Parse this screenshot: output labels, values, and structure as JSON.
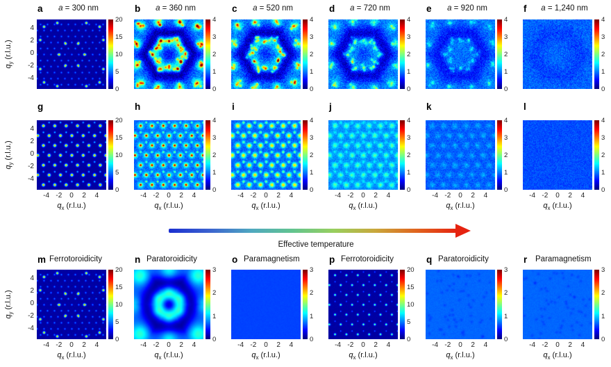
{
  "figure": {
    "arrow": {
      "label": "Effective temperature",
      "gradient": [
        "#1b2fd0",
        "#3b63cf",
        "#4fa8c0",
        "#62c48f",
        "#98cf5e",
        "#c9a83c",
        "#e0641e",
        "#e62310"
      ]
    },
    "axis": {
      "x_main": "q",
      "x_sub": "x",
      "x_unit": " (r.l.u.)",
      "y_main": "q",
      "y_sub": "y",
      "y_unit": " (r.l.u.)"
    },
    "colors": {
      "background": "#ffffff",
      "text": "#111111",
      "dark_blue": "#000080",
      "arrow_red": "#e62310"
    }
  },
  "chart_data": {
    "type": "heatmap",
    "colormap": "jet",
    "q_range": [
      -5.5,
      5.5
    ],
    "x_ticks": [
      "-4",
      "-2",
      "0",
      "2",
      "4"
    ],
    "y_ticks": [
      "4",
      "2",
      "0",
      "-2",
      "-4"
    ],
    "x_tick_q": [
      -4,
      -2,
      0,
      2,
      4
    ],
    "y_tick_q": [
      4,
      2,
      0,
      -2,
      -4
    ],
    "cluster_sites": [
      [
        1.86,
        1.08
      ],
      [
        0,
        2.15
      ],
      [
        -1.86,
        1.08
      ],
      [
        -1.86,
        -1.08
      ],
      [
        0,
        -2.15
      ],
      [
        1.86,
        -1.08
      ],
      [
        2.6,
        0
      ],
      [
        1.3,
        2.25
      ],
      [
        -1.3,
        2.25
      ],
      [
        -2.6,
        0
      ],
      [
        -1.3,
        -2.25
      ],
      [
        1.3,
        -2.25
      ],
      [
        4.5,
        4.5
      ],
      [
        -4.5,
        4.5
      ],
      [
        -4.5,
        -4.5
      ],
      [
        4.5,
        -4.5
      ],
      [
        1.7,
        5.1
      ],
      [
        -1.7,
        5.1
      ],
      [
        1.7,
        -5.1
      ],
      [
        -1.7,
        -5.1
      ],
      [
        5.1,
        1.7
      ],
      [
        5.1,
        -1.7
      ],
      [
        -5.1,
        1.7
      ],
      [
        -5.1,
        -1.7
      ]
    ],
    "bragg_bright_pts": [
      [
        2,
        0
      ],
      [
        1,
        1.73
      ],
      [
        -1,
        1.73
      ],
      [
        -2,
        0
      ],
      [
        -1,
        -1.73
      ],
      [
        1,
        -1.73
      ],
      [
        2.3,
        5.0
      ],
      [
        -2.3,
        5.0
      ],
      [
        2.3,
        -5.0
      ],
      [
        -2.3,
        -5.0
      ],
      [
        5.0,
        2.3
      ],
      [
        5.0,
        -2.3
      ],
      [
        -5.0,
        2.3
      ],
      [
        -5.0,
        -2.3
      ],
      [
        4.4,
        4.4
      ],
      [
        -4.4,
        4.4
      ],
      [
        4.4,
        -4.4
      ],
      [
        -4.4,
        -4.4
      ]
    ],
    "panels": [
      {
        "id": "a",
        "row": 0,
        "col": 0,
        "title_em": "a",
        "title_rest": "= 300 nm",
        "cb_max": 20,
        "cb_ticks": [
          "20",
          "15",
          "10",
          "5",
          "0"
        ],
        "show_x": false,
        "show_y": true,
        "pattern": {
          "bg": 0.035,
          "noise": 0.01,
          "hex": {
            "s": 1.1,
            "amp": 0.27,
            "sig": 0.09
          },
          "bright": {
            "amp": 0.72,
            "sig": 0.13,
            "use_bragg_pts": true
          }
        }
      },
      {
        "id": "b",
        "row": 0,
        "col": 1,
        "title_em": "a",
        "title_rest": "= 360 nm",
        "cb_max": 4,
        "cb_ticks": [
          "4",
          "3",
          "2",
          "1",
          "0"
        ],
        "show_x": false,
        "show_y": false,
        "pattern": {
          "bg": 0.235,
          "noise": 0.07,
          "ring": [
            3.2,
            0.78,
            0.21
          ],
          "dip": [
            0.7,
            0.1
          ],
          "clusters": {
            "blob": [
              0.3,
              0.5
            ],
            "core": [
              0.38,
              0.13
            ],
            "spk": [
              3,
              0.33,
              0.15,
              0.55
            ]
          }
        }
      },
      {
        "id": "c",
        "row": 0,
        "col": 2,
        "title_em": "a",
        "title_rest": "= 520 nm",
        "cb_max": 4,
        "cb_ticks": [
          "4",
          "3",
          "2",
          "1",
          "0"
        ],
        "show_x": false,
        "show_y": false,
        "pattern": {
          "bg": 0.245,
          "noise": 0.08,
          "ring": [
            3.2,
            0.82,
            0.19
          ],
          "dip": [
            0.7,
            0.08
          ],
          "clusters": {
            "blob": [
              0.2,
              0.5
            ],
            "core": [
              0.28,
              0.14
            ],
            "spk": [
              3,
              0.27,
              0.15,
              0.55
            ]
          }
        }
      },
      {
        "id": "d",
        "row": 0,
        "col": 3,
        "title_em": "a",
        "title_rest": "= 720 nm",
        "cb_max": 4,
        "cb_ticks": [
          "4",
          "3",
          "2",
          "1",
          "0"
        ],
        "show_x": false,
        "show_y": false,
        "pattern": {
          "bg": 0.245,
          "noise": 0.075,
          "ring": [
            3.2,
            0.85,
            0.17
          ],
          "dip": [
            0.7,
            0.06
          ],
          "clusters": {
            "blob": [
              0.11,
              0.5
            ],
            "core": [
              0.15,
              0.15
            ],
            "spk": [
              3,
              0.15,
              0.15,
              0.55
            ]
          }
        }
      },
      {
        "id": "e",
        "row": 0,
        "col": 4,
        "title_em": "a",
        "title_rest": "= 920 nm",
        "cb_max": 4,
        "cb_ticks": [
          "4",
          "3",
          "2",
          "1",
          "0"
        ],
        "show_x": false,
        "show_y": false,
        "pattern": {
          "bg": 0.235,
          "noise": 0.065,
          "ring": [
            3.2,
            0.9,
            0.1
          ],
          "clusters": {
            "blob": [
              0.05,
              0.5
            ],
            "core": [
              0.09,
              0.15
            ],
            "spk": [
              2,
              0.08,
              0.15,
              0.5
            ]
          }
        }
      },
      {
        "id": "f",
        "row": 0,
        "col": 5,
        "title_em": "a",
        "title_rest": "= 1,240 nm",
        "cb_max": 4,
        "cb_ticks": [
          "4",
          "3",
          "2",
          "1",
          "0"
        ],
        "show_x": false,
        "show_y": false,
        "pattern": {
          "bg": 0.225,
          "noise": 0.06,
          "ring": [
            3.2,
            1.0,
            0.035
          ]
        }
      },
      {
        "id": "g",
        "row": 1,
        "col": 0,
        "title_em": "",
        "title_rest": "",
        "cb_max": 20,
        "cb_ticks": [
          "20",
          "15",
          "10",
          "5",
          "0"
        ],
        "show_x": true,
        "show_y": true,
        "pattern": {
          "bg": 0.035,
          "noise": 0.01,
          "hex": {
            "s": 1.8,
            "amp": 0.78,
            "sig": 0.15
          },
          "sub": {
            "amp": 0.38,
            "sig": 0.09
          }
        }
      },
      {
        "id": "h",
        "row": 1,
        "col": 1,
        "title_em": "",
        "title_rest": "",
        "cb_max": 4,
        "cb_ticks": [
          "4",
          "3",
          "2",
          "1",
          "0"
        ],
        "show_x": true,
        "show_y": false,
        "pattern": {
          "bg": 0.21,
          "noise": 0.05,
          "hex": {
            "s": 1.8,
            "amp": 0.67,
            "sig": 0.13
          },
          "halo": {
            "amp": 0.22,
            "sig": 0.38
          },
          "sub": {
            "amp": 0.3,
            "sig": 0.12
          }
        }
      },
      {
        "id": "i",
        "row": 1,
        "col": 2,
        "title_em": "",
        "title_rest": "",
        "cb_max": 4,
        "cb_ticks": [
          "4",
          "3",
          "2",
          "1",
          "0"
        ],
        "show_x": true,
        "show_y": false,
        "pattern": {
          "bg": 0.22,
          "noise": 0.05,
          "hex": {
            "s": 1.8,
            "amp": 0.45,
            "sig": 0.26
          },
          "sub": {
            "amp": 0.3,
            "sig": 0.15
          }
        }
      },
      {
        "id": "j",
        "row": 1,
        "col": 3,
        "title_em": "",
        "title_rest": "",
        "cb_max": 4,
        "cb_ticks": [
          "4",
          "3",
          "2",
          "1",
          "0"
        ],
        "show_x": true,
        "show_y": false,
        "pattern": {
          "bg": 0.26,
          "noise": 0.045,
          "hex": {
            "s": 1.8,
            "amp": 0.2,
            "sig": 0.3
          },
          "sub": {
            "amp": 0.1,
            "sig": 0.2
          }
        }
      },
      {
        "id": "k",
        "row": 1,
        "col": 4,
        "title_em": "",
        "title_rest": "",
        "cb_max": 4,
        "cb_ticks": [
          "4",
          "3",
          "2",
          "1",
          "0"
        ],
        "show_x": true,
        "show_y": false,
        "pattern": {
          "bg": 0.215,
          "noise": 0.045,
          "hex": {
            "s": 1.8,
            "amp": 0.08,
            "sig": 0.3
          }
        }
      },
      {
        "id": "l",
        "row": 1,
        "col": 5,
        "title_em": "",
        "title_rest": "",
        "cb_max": 4,
        "cb_ticks": [
          "4",
          "3",
          "2",
          "1",
          "0"
        ],
        "show_x": true,
        "show_y": false,
        "pattern": {
          "bg": 0.2,
          "noise": 0.04
        }
      },
      {
        "id": "m",
        "row": 2,
        "col": 0,
        "title_em": "",
        "title_rest": "Ferrotoroidicity",
        "cb_max": 20,
        "cb_ticks": [
          "20",
          "15",
          "10",
          "5",
          "0"
        ],
        "show_x": true,
        "show_y": true,
        "pattern": {
          "bg": 0.035,
          "noise": 0.01,
          "hex": {
            "s": 1.1,
            "amp": 0.27,
            "sig": 0.09
          },
          "bright": {
            "amp": 0.72,
            "sig": 0.13,
            "use_bragg_pts": true
          }
        }
      },
      {
        "id": "n",
        "row": 2,
        "col": 1,
        "title_em": "",
        "title_rest": "Paratoroidicity",
        "cb_max": 3,
        "cb_ticks": [
          "3",
          "2",
          "1",
          "0"
        ],
        "show_x": true,
        "show_y": false,
        "pattern": {
          "bg": 0.22,
          "noise": 0.004,
          "ring": [
            3.3,
            0.95,
            0.19
          ],
          "dip": [
            0.75,
            0.19
          ],
          "blobs": [
            [
              0,
              1.9,
              0.25,
              0.75
            ],
            [
              1.65,
              0.95,
              0.25,
              0.75
            ],
            [
              1.65,
              -0.95,
              0.25,
              0.75
            ],
            [
              0,
              -1.9,
              0.25,
              0.75
            ],
            [
              -1.65,
              -0.95,
              0.25,
              0.75
            ],
            [
              -1.65,
              0.95,
              0.25,
              0.75
            ],
            [
              4.6,
              4.6,
              0.2,
              1.0
            ],
            [
              -4.6,
              4.6,
              0.2,
              1.0
            ],
            [
              4.6,
              -4.6,
              0.2,
              1.0
            ],
            [
              -4.6,
              -4.6,
              0.2,
              1.0
            ],
            [
              0,
              5.3,
              0.16,
              0.9
            ],
            [
              0,
              -5.3,
              0.16,
              0.9
            ],
            [
              5.3,
              0,
              0.16,
              0.9
            ],
            [
              -5.3,
              0,
              0.16,
              0.9
            ]
          ]
        }
      },
      {
        "id": "o",
        "row": 2,
        "col": 2,
        "title_em": "",
        "title_rest": "Paramagnetism",
        "cb_max": 3,
        "cb_ticks": [
          "3",
          "2",
          "1",
          "0"
        ],
        "show_x": true,
        "show_y": false,
        "pattern": {
          "bg": 0.19,
          "noise": 0.006
        }
      },
      {
        "id": "p",
        "row": 2,
        "col": 3,
        "title_em": "",
        "title_rest": "Ferrotoroidicity",
        "cb_max": 20,
        "cb_ticks": [
          "20",
          "15",
          "10",
          "5",
          "0"
        ],
        "show_x": true,
        "show_y": false,
        "pattern": {
          "bg": 0.035,
          "noise": 0.008,
          "hex": {
            "s": 1.8,
            "amp": 0.55,
            "sig": 0.11
          },
          "sub": {
            "amp": 0.26,
            "sig": 0.07
          }
        }
      },
      {
        "id": "q",
        "row": 2,
        "col": 4,
        "title_em": "",
        "title_rest": "Paratoroidicity",
        "cb_max": 3,
        "cb_ticks": [
          "3",
          "2",
          "1",
          "0"
        ],
        "show_x": true,
        "show_y": false,
        "pattern": {
          "bg": 0.225,
          "noise": 0.01,
          "dashes": [
            60,
            -0.03,
            0.16
          ]
        }
      },
      {
        "id": "r",
        "row": 2,
        "col": 5,
        "title_em": "",
        "title_rest": "Paramagnetism",
        "cb_max": 3,
        "cb_ticks": [
          "3",
          "2",
          "1",
          "0"
        ],
        "show_x": true,
        "show_y": false,
        "pattern": {
          "bg": 0.225,
          "noise": 0.01,
          "dashes": [
            60,
            -0.03,
            0.16
          ]
        }
      }
    ]
  }
}
